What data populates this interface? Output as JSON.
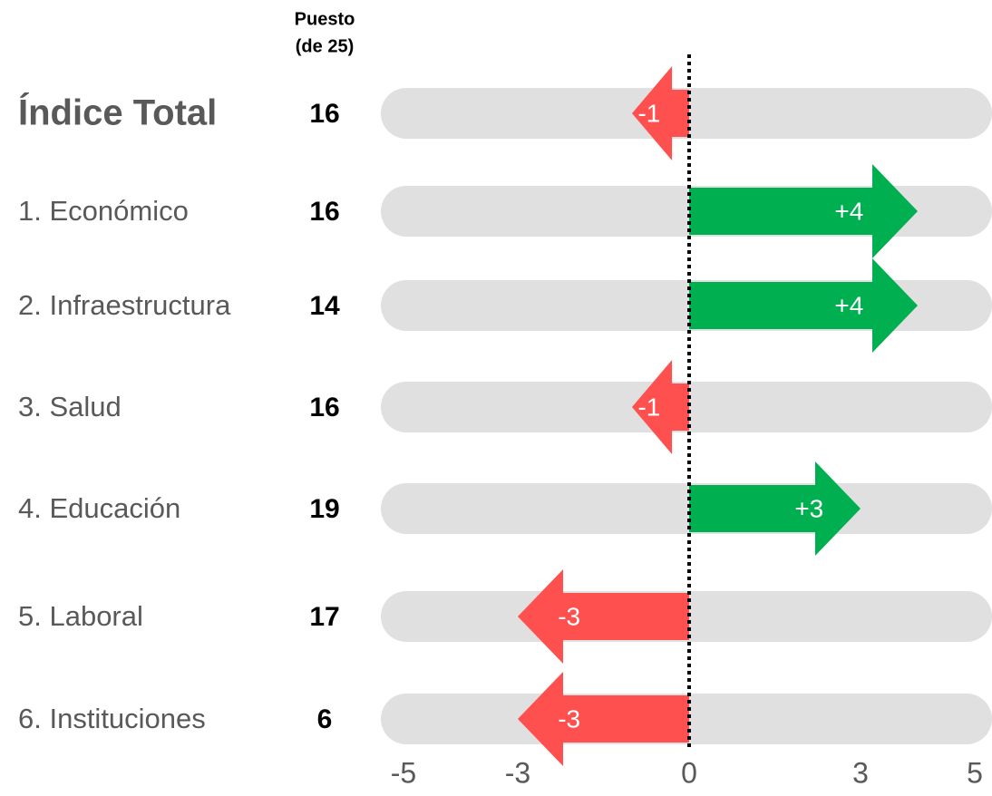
{
  "chart_data": {
    "type": "arrow",
    "rank_header": [
      "Puesto",
      "(de 25)"
    ],
    "categories": [
      "Índice Total",
      "1. Económico",
      "2. Infraestructura",
      "3. Salud",
      "4. Educación",
      "5. Laboral",
      "6. Instituciones"
    ],
    "ranks": [
      16,
      16,
      14,
      16,
      19,
      17,
      6
    ],
    "values": [
      -1,
      4,
      4,
      -1,
      3,
      -3,
      -3
    ],
    "value_labels": [
      "-1",
      "+4",
      "+4",
      "-1",
      "+3",
      "-3",
      "-3"
    ],
    "positive_color": "#00b050",
    "negative_color": "#ff5050",
    "xlim": [
      -5,
      5
    ],
    "xticks": [
      -5,
      -3,
      0,
      3,
      5
    ]
  }
}
